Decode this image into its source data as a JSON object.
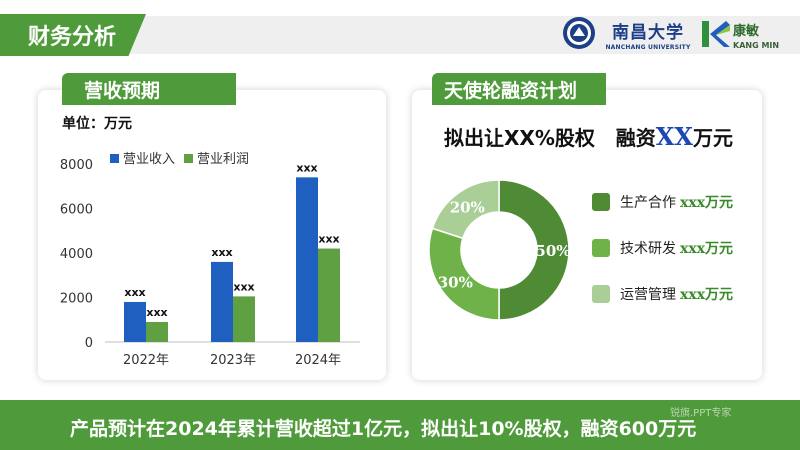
{
  "header": {
    "title": "财务分析"
  },
  "logos": {
    "ncu_name_cn": "南昌大学",
    "ncu_name_en": "NANCHANG UNIVERSITY",
    "km_name_cn": "康敏",
    "km_name_en": "KANG MIN"
  },
  "left_card": {
    "title": "营收预期",
    "unit": "单位：万元"
  },
  "right_card": {
    "title": "天使轮融资计划",
    "equity_part1": "拟出让XX%股权",
    "equity_part2": "融资",
    "equity_xx": "XX",
    "equity_part3": "万元",
    "legend": [
      {
        "label": "生产合作",
        "amount": "xxx",
        "unit": "万元",
        "color": "#4f8a35"
      },
      {
        "label": "技术研发",
        "amount": "xxx",
        "unit": "万元",
        "color": "#6fb24a"
      },
      {
        "label": "运营管理",
        "amount": "xxx",
        "unit": "万元",
        "color": "#a9cf96"
      }
    ]
  },
  "chart_data": [
    {
      "type": "bar",
      "categories": [
        "2022年",
        "2023年",
        "2024年"
      ],
      "series": [
        {
          "name": "营业收入",
          "values": [
            1800,
            3600,
            7400
          ],
          "color": "#1f5fbf",
          "labels": [
            "xxx",
            "xxx",
            "xxx"
          ]
        },
        {
          "name": "营业利润",
          "values": [
            900,
            2050,
            4200
          ],
          "color": "#5fa043",
          "labels": [
            "xxx",
            "xxx",
            "xxx"
          ]
        }
      ],
      "yticks": [
        0,
        2000,
        4000,
        6000,
        8000
      ],
      "ylim": [
        0,
        8000
      ],
      "legend": "top-left",
      "grid": false
    },
    {
      "type": "pie",
      "labels": [
        "生产合作",
        "技术研发",
        "运营管理"
      ],
      "values": [
        50,
        30,
        20
      ],
      "value_labels": [
        "50%",
        "30%",
        "20%"
      ],
      "colors": [
        "#4f8a35",
        "#6fb24a",
        "#a9cf96"
      ],
      "donut": true
    }
  ],
  "footer": {
    "text": "产品预计在2024年累计营收超过1亿元，拟出让10%股权，融资600万元",
    "watermark": "锐旗.PPT专家"
  }
}
